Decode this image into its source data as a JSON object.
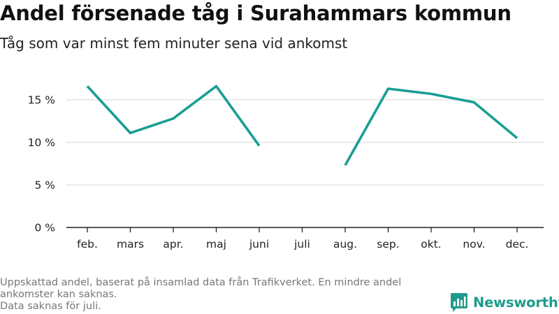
{
  "title": "Andel försenade tåg i Surahammars kommun",
  "subtitle": "Tåg som var minst fem minuter sena vid ankomst",
  "footnote": {
    "line1": "Uppskattad andel, baserat på insamlad data från Trafikverket. En mindre andel",
    "line2": "ankomster kan saknas.",
    "line3": "Data saknas för juli."
  },
  "brand": {
    "name": "Newsworthy",
    "color": "#1f9b8c"
  },
  "chart_data": {
    "type": "line",
    "title": "Andel försenade tåg i Surahammars kommun",
    "subtitle": "Tåg som var minst fem minuter sena vid ankomst",
    "categories": [
      "feb.",
      "mars",
      "apr.",
      "maj",
      "juni",
      "juli",
      "aug.",
      "sep.",
      "okt.",
      "nov.",
      "dec."
    ],
    "values": [
      16.6,
      11.1,
      12.8,
      16.6,
      9.6,
      null,
      7.3,
      16.3,
      15.7,
      14.7,
      10.5
    ],
    "y_ticks": [
      0,
      5,
      10,
      15
    ],
    "y_tick_labels": [
      "0 %",
      "5 %",
      "10 %",
      "15 %"
    ],
    "ylim": [
      0,
      17.5
    ],
    "grid": true,
    "line_color": "#1a9e93",
    "xlabel": "",
    "ylabel": ""
  }
}
